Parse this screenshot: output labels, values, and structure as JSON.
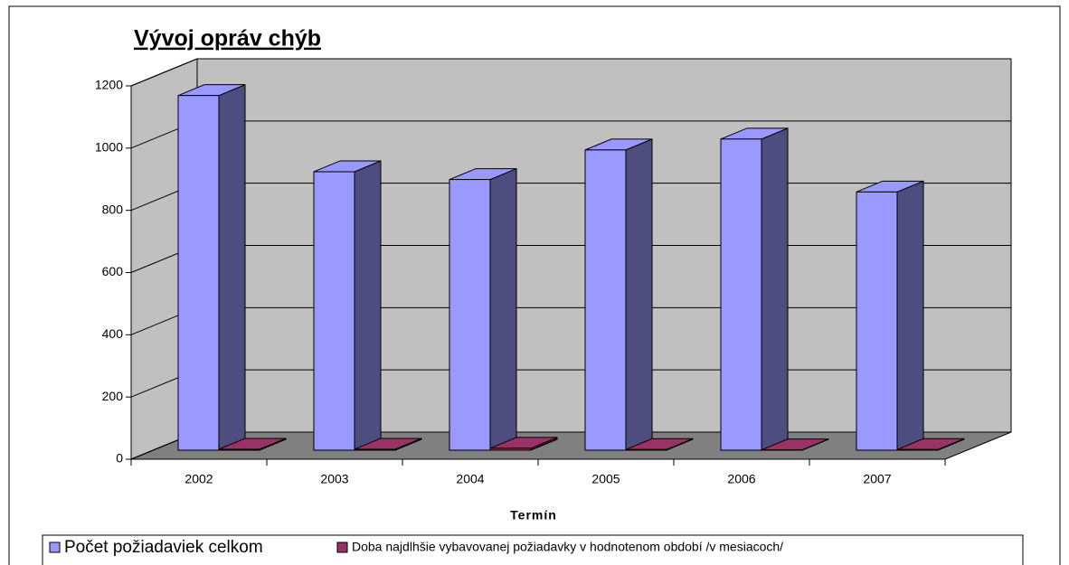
{
  "chart_data": {
    "type": "bar3d",
    "title": "Vývoj opráv chýb",
    "x_label": "Termín",
    "categories": [
      "2002",
      "2003",
      "2004",
      "2005",
      "2006",
      "2007"
    ],
    "series": [
      {
        "name": "Počet požiadaviek celkom",
        "color": "#9999ff",
        "values": [
          1140,
          895,
          870,
          965,
          1000,
          830
        ]
      },
      {
        "name": "Doba najdlhšie vybavovanej požiadavky v hodnotenom období /v mesiacoch/",
        "color": "#993366",
        "values": [
          3,
          3,
          6,
          2,
          1,
          2
        ]
      }
    ],
    "ylim": [
      0,
      1200
    ],
    "yticks": [
      0,
      200,
      400,
      600,
      800,
      1000,
      1200
    ],
    "grid": true,
    "legend": "bottom"
  }
}
